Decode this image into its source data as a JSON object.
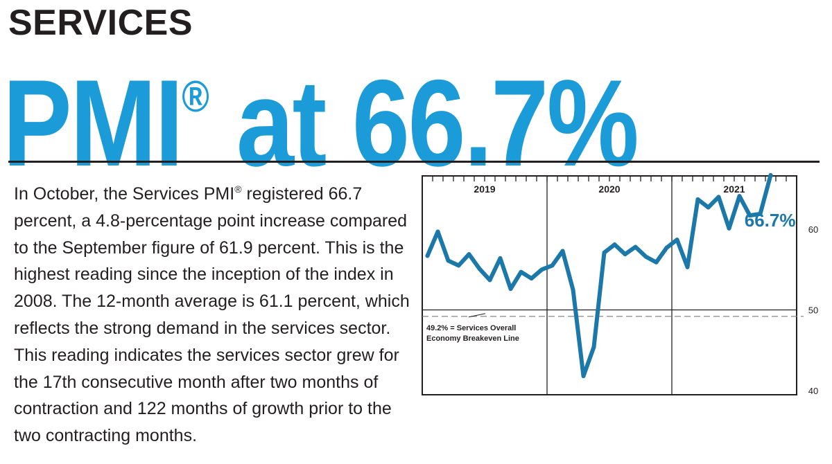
{
  "header": {
    "kicker": "SERVICES",
    "headline_pre": "PMI",
    "headline_reg": "®",
    "headline_post": " at 66.7%"
  },
  "body": {
    "p1": "In October, the Services PMI",
    "reg": "®",
    "p2": " registered 66.7 percent, a 4.8-percentage point increase compared to the September figure of 61.9 percent. This is the highest reading since the inception of the index in 2008. The 12-month average is 61.1 percent, which reflects the strong demand in the services sector. This reading indicates the services sector grew for the 17th consecutive month after two months of contraction and 122 months of growth prior to the two contracting months."
  },
  "colors": {
    "accent": "#1b9bd7",
    "line": "#1b78a8",
    "text": "#231f20"
  },
  "chart_data": {
    "type": "line",
    "title": "",
    "xlabel": "",
    "ylabel": "",
    "years": [
      "2019",
      "2020",
      "2021"
    ],
    "ylim": [
      40,
      63
    ],
    "yticks": [
      60,
      50,
      40
    ],
    "breakeven": {
      "value": 49.2,
      "label_line1": "49.2% = Services Overall",
      "label_line2": "Economy Breakeven Line"
    },
    "callout": "66.7%",
    "x": [
      "Jan 2019",
      "Feb 2019",
      "Mar 2019",
      "Apr 2019",
      "May 2019",
      "Jun 2019",
      "Jul 2019",
      "Aug 2019",
      "Sep 2019",
      "Oct 2019",
      "Nov 2019",
      "Dec 2019",
      "Jan 2020",
      "Feb 2020",
      "Mar 2020",
      "Apr 2020",
      "May 2020",
      "Jun 2020",
      "Jul 2020",
      "Aug 2020",
      "Sep 2020",
      "Oct 2020",
      "Nov 2020",
      "Dec 2020",
      "Jan 2021",
      "Feb 2021",
      "Mar 2021",
      "Apr 2021",
      "May 2021",
      "Jun 2021",
      "Jul 2021",
      "Aug 2021",
      "Sep 2021",
      "Oct 2021"
    ],
    "series": [
      {
        "values": [
          56.7,
          59.7,
          56.1,
          55.5,
          56.9,
          55.1,
          53.7,
          56.4,
          52.6,
          54.7,
          53.9,
          55.0,
          55.5,
          57.3,
          52.5,
          41.8,
          45.4,
          57.1,
          58.1,
          56.9,
          57.8,
          56.6,
          55.9,
          57.7,
          58.7,
          55.3,
          63.7,
          62.7,
          64.0,
          60.1,
          64.1,
          61.7,
          61.9,
          66.7
        ]
      }
    ]
  }
}
